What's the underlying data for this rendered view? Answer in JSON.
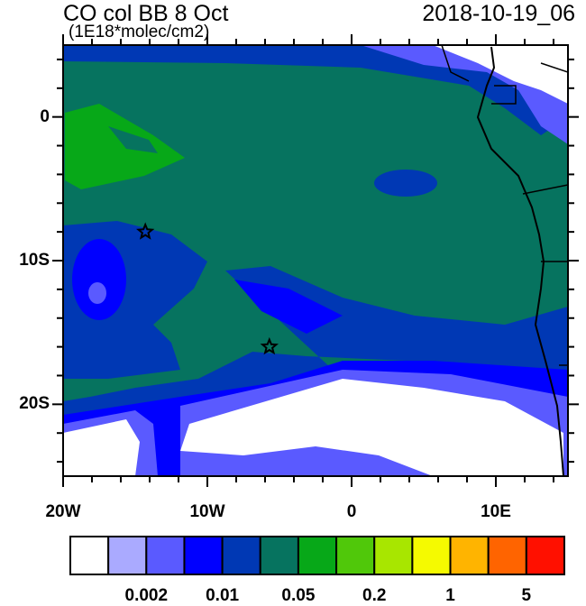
{
  "header": {
    "title": "CO col BB 8 Oct",
    "units": "(1E18*molec/cm2)",
    "datetime": "2018-10-19_06"
  },
  "map": {
    "lon_range": [
      -20,
      15
    ],
    "lat_range": [
      -25,
      5
    ],
    "lon_ticks": [
      {
        "value": -20,
        "label": "20W"
      },
      {
        "value": -10,
        "label": "10W"
      },
      {
        "value": 0,
        "label": "0"
      },
      {
        "value": 10,
        "label": "10E"
      }
    ],
    "lat_ticks": [
      {
        "value": 0,
        "label": "0"
      },
      {
        "value": -10,
        "label": "10S"
      },
      {
        "value": -20,
        "label": "20S"
      }
    ],
    "markers": [
      {
        "type": "star",
        "lon": -14.3,
        "lat": -8.0
      },
      {
        "type": "star",
        "lon": -5.7,
        "lat": -16.0
      }
    ]
  },
  "colorbar": {
    "colors": [
      "#ffffff",
      "#aaaaff",
      "#5a5aff",
      "#0000ff",
      "#0038b4",
      "#06735f",
      "#07a818",
      "#50c80a",
      "#a8e600",
      "#f5fa00",
      "#ffb400",
      "#ff6400",
      "#ff1000"
    ],
    "labels": [
      {
        "boundary": 2,
        "text": "0.002"
      },
      {
        "boundary": 4,
        "text": "0.01"
      },
      {
        "boundary": 6,
        "text": "0.05"
      },
      {
        "boundary": 8,
        "text": "0.2"
      },
      {
        "boundary": 10,
        "text": "1"
      },
      {
        "boundary": 12,
        "text": "5"
      }
    ]
  }
}
